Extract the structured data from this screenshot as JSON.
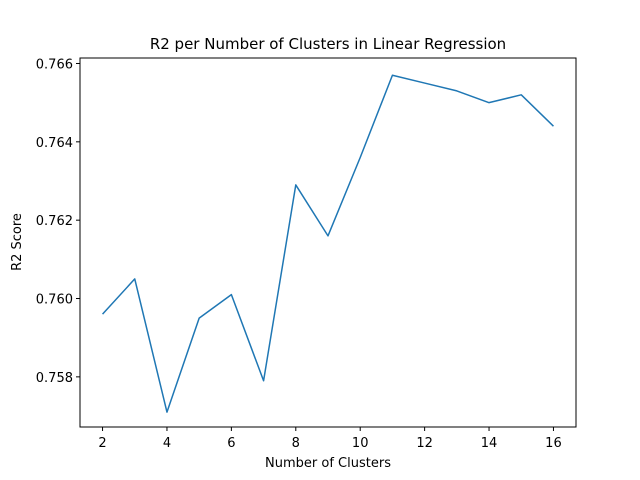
{
  "chart_data": {
    "type": "line",
    "title": "R2 per Number of Clusters in Linear Regression",
    "xlabel": "Number of Clusters",
    "ylabel": "R2 Score",
    "x": [
      2,
      3,
      4,
      5,
      6,
      7,
      8,
      9,
      10,
      11,
      12,
      13,
      14,
      15,
      16
    ],
    "series": [
      {
        "values": [
          0.7596,
          0.7605,
          0.7571,
          0.7595,
          0.7601,
          0.7579,
          0.7629,
          0.7616,
          0.7636,
          0.7657,
          0.7655,
          0.7653,
          0.765,
          0.7652,
          0.7644
        ],
        "color": "#1f77b4"
      }
    ],
    "xlim": [
      1.3,
      16.7
    ],
    "ylim": [
      0.75672,
      0.76614
    ],
    "xticks": [
      2,
      4,
      6,
      8,
      10,
      12,
      14,
      16
    ],
    "xtick_labels": [
      "2",
      "4",
      "6",
      "8",
      "10",
      "12",
      "14",
      "16"
    ],
    "yticks": [
      0.758,
      0.76,
      0.762,
      0.764,
      0.766
    ],
    "ytick_labels": [
      "0.758",
      "0.760",
      "0.762",
      "0.764",
      "0.766"
    ],
    "grid": false,
    "legend": "none"
  }
}
